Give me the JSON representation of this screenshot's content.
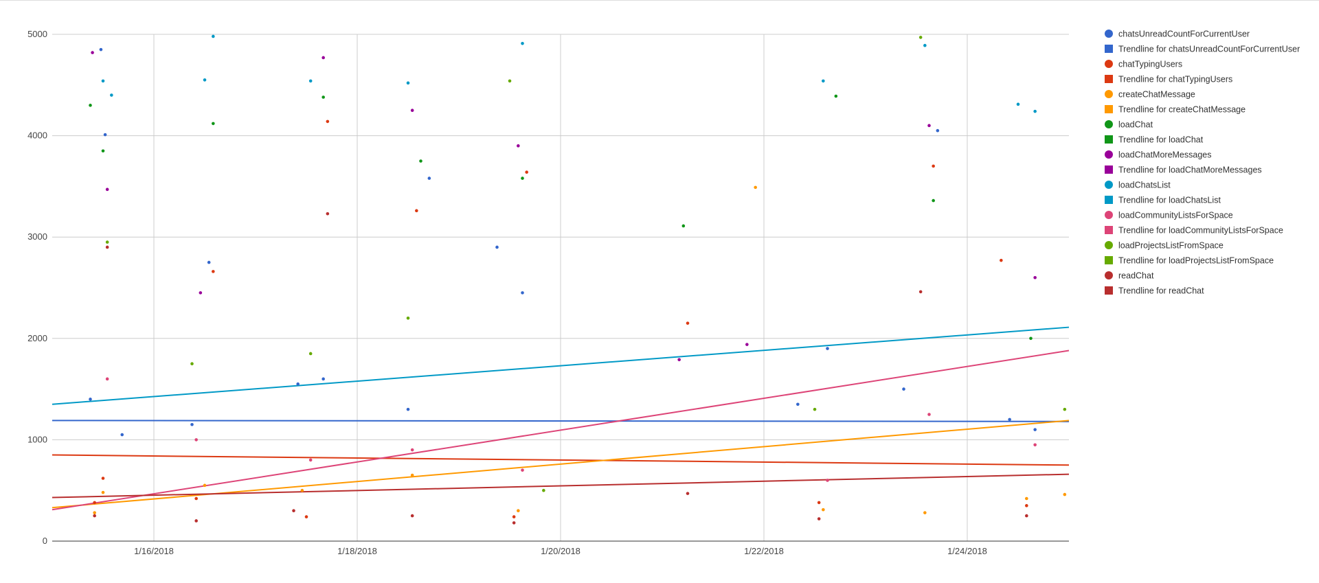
{
  "chart_data": {
    "type": "scatter",
    "title": "",
    "xlabel": "",
    "ylabel": "",
    "x_axis_type": "date",
    "xlim": [
      "2018-01-15T00:00",
      "2018-01-25T00:00"
    ],
    "ylim": [
      0,
      5000
    ],
    "grid": true,
    "legend_position": "right",
    "x_ticks": [
      {
        "x": "2018-01-16",
        "label": "1/16/2018"
      },
      {
        "x": "2018-01-18",
        "label": "1/18/2018"
      },
      {
        "x": "2018-01-20",
        "label": "1/20/2018"
      },
      {
        "x": "2018-01-22",
        "label": "1/22/2018"
      },
      {
        "x": "2018-01-24",
        "label": "1/24/2018"
      }
    ],
    "y_ticks": [
      {
        "y": 0,
        "label": "0"
      },
      {
        "y": 1000,
        "label": "1000"
      },
      {
        "y": 2000,
        "label": "2000"
      },
      {
        "y": 3000,
        "label": "3000"
      },
      {
        "y": 4000,
        "label": "4000"
      },
      {
        "y": 5000,
        "label": "5000"
      }
    ],
    "series": [
      {
        "name": "chatsUnreadCountForCurrentUser",
        "color": "#3366cc",
        "points": [
          [
            "2018-01-15T09:00",
            1400
          ],
          [
            "2018-01-15T11:30",
            4850
          ],
          [
            "2018-01-15T12:30",
            4010
          ],
          [
            "2018-01-15T16:30",
            1050
          ],
          [
            "2018-01-16T09:00",
            1150
          ],
          [
            "2018-01-16T13:00",
            2750
          ],
          [
            "2018-01-17T10:00",
            1550
          ],
          [
            "2018-01-17T16:00",
            1600
          ],
          [
            "2018-01-18T12:00",
            1300
          ],
          [
            "2018-01-18T17:00",
            3580
          ],
          [
            "2018-01-19T09:00",
            2900
          ],
          [
            "2018-01-19T15:00",
            2450
          ],
          [
            "2018-01-22T08:00",
            1350
          ],
          [
            "2018-01-22T15:00",
            1900
          ],
          [
            "2018-01-23T09:00",
            1500
          ],
          [
            "2018-01-23T17:00",
            4050
          ],
          [
            "2018-01-24T10:00",
            1200
          ],
          [
            "2018-01-24T16:00",
            1100
          ]
        ]
      },
      {
        "name": "chatTypingUsers",
        "color": "#dc3912",
        "points": [
          [
            "2018-01-15T10:00",
            380
          ],
          [
            "2018-01-15T12:00",
            620
          ],
          [
            "2018-01-16T10:00",
            420
          ],
          [
            "2018-01-16T14:00",
            2660
          ],
          [
            "2018-01-17T12:00",
            240
          ],
          [
            "2018-01-17T17:00",
            4140
          ],
          [
            "2018-01-18T14:00",
            3260
          ],
          [
            "2018-01-19T13:00",
            240
          ],
          [
            "2018-01-19T16:00",
            3640
          ],
          [
            "2018-01-21T06:00",
            2150
          ],
          [
            "2018-01-22T13:00",
            380
          ],
          [
            "2018-01-23T16:00",
            3700
          ],
          [
            "2018-01-24T08:00",
            2770
          ],
          [
            "2018-01-24T14:00",
            350
          ]
        ]
      },
      {
        "name": "createChatMessage",
        "color": "#ff9900",
        "points": [
          [
            "2018-01-15T10:00",
            280
          ],
          [
            "2018-01-15T12:00",
            480
          ],
          [
            "2018-01-16T12:00",
            550
          ],
          [
            "2018-01-17T11:00",
            500
          ],
          [
            "2018-01-18T13:00",
            650
          ],
          [
            "2018-01-19T14:00",
            300
          ],
          [
            "2018-01-21T22:00",
            3490
          ],
          [
            "2018-01-22T14:00",
            310
          ],
          [
            "2018-01-23T14:00",
            280
          ],
          [
            "2018-01-24T14:00",
            420
          ],
          [
            "2018-01-24T23:00",
            460
          ]
        ]
      },
      {
        "name": "loadChat",
        "color": "#109618",
        "points": [
          [
            "2018-01-15T09:00",
            4300
          ],
          [
            "2018-01-15T12:00",
            3850
          ],
          [
            "2018-01-16T14:00",
            4120
          ],
          [
            "2018-01-17T16:00",
            4380
          ],
          [
            "2018-01-18T15:00",
            3750
          ],
          [
            "2018-01-19T15:00",
            3580
          ],
          [
            "2018-01-21T05:00",
            3110
          ],
          [
            "2018-01-22T17:00",
            4390
          ],
          [
            "2018-01-23T16:00",
            3360
          ],
          [
            "2018-01-24T15:00",
            2000
          ]
        ]
      },
      {
        "name": "loadChatMoreMessages",
        "color": "#990099",
        "points": [
          [
            "2018-01-15T09:30",
            4820
          ],
          [
            "2018-01-15T13:00",
            3470
          ],
          [
            "2018-01-16T11:00",
            2450
          ],
          [
            "2018-01-17T16:00",
            4770
          ],
          [
            "2018-01-18T13:00",
            4250
          ],
          [
            "2018-01-19T14:00",
            3900
          ],
          [
            "2018-01-21T04:00",
            1790
          ],
          [
            "2018-01-21T20:00",
            1940
          ],
          [
            "2018-01-23T15:00",
            4100
          ],
          [
            "2018-01-24T16:00",
            2600
          ]
        ]
      },
      {
        "name": "loadChatsList",
        "color": "#0099c6",
        "points": [
          [
            "2018-01-15T12:00",
            4540
          ],
          [
            "2018-01-15T14:00",
            4400
          ],
          [
            "2018-01-16T12:00",
            4550
          ],
          [
            "2018-01-16T14:00",
            4980
          ],
          [
            "2018-01-17T13:00",
            4540
          ],
          [
            "2018-01-18T12:00",
            4520
          ],
          [
            "2018-01-19T15:00",
            4910
          ],
          [
            "2018-01-22T14:00",
            4540
          ],
          [
            "2018-01-23T14:00",
            4890
          ],
          [
            "2018-01-24T12:00",
            4310
          ],
          [
            "2018-01-24T16:00",
            4240
          ]
        ]
      },
      {
        "name": "loadCommunityListsForSpace",
        "color": "#dd4477",
        "points": [
          [
            "2018-01-15T13:00",
            1600
          ],
          [
            "2018-01-16T10:00",
            1000
          ],
          [
            "2018-01-17T13:00",
            800
          ],
          [
            "2018-01-18T13:00",
            900
          ],
          [
            "2018-01-19T15:00",
            700
          ],
          [
            "2018-01-22T15:00",
            600
          ],
          [
            "2018-01-23T15:00",
            1250
          ],
          [
            "2018-01-24T16:00",
            950
          ]
        ]
      },
      {
        "name": "loadProjectsListFromSpace",
        "color": "#66aa00",
        "points": [
          [
            "2018-01-15T13:00",
            2950
          ],
          [
            "2018-01-16T09:00",
            1750
          ],
          [
            "2018-01-17T13:00",
            1850
          ],
          [
            "2018-01-18T12:00",
            2200
          ],
          [
            "2018-01-19T12:00",
            4540
          ],
          [
            "2018-01-19T20:00",
            500
          ],
          [
            "2018-01-22T12:00",
            1300
          ],
          [
            "2018-01-23T13:00",
            4970
          ],
          [
            "2018-01-24T23:00",
            1300
          ]
        ]
      },
      {
        "name": "readChat",
        "color": "#b82e2e",
        "points": [
          [
            "2018-01-15T10:00",
            250
          ],
          [
            "2018-01-15T13:00",
            2900
          ],
          [
            "2018-01-16T10:00",
            200
          ],
          [
            "2018-01-17T09:00",
            300
          ],
          [
            "2018-01-17T17:00",
            3230
          ],
          [
            "2018-01-18T13:00",
            250
          ],
          [
            "2018-01-19T13:00",
            180
          ],
          [
            "2018-01-21T06:00",
            470
          ],
          [
            "2018-01-22T13:00",
            220
          ],
          [
            "2018-01-23T13:00",
            2460
          ],
          [
            "2018-01-24T14:00",
            250
          ]
        ]
      }
    ],
    "trendlines": [
      {
        "name": "Trendline for chatsUnreadCountForCurrentUser",
        "color": "#3366cc",
        "start": [
          "2018-01-15T00:00",
          1190
        ],
        "end": [
          "2018-01-25T00:00",
          1180
        ]
      },
      {
        "name": "Trendline for chatTypingUsers",
        "color": "#dc3912",
        "start": [
          "2018-01-15T00:00",
          850
        ],
        "end": [
          "2018-01-25T00:00",
          750
        ]
      },
      {
        "name": "Trendline for createChatMessage",
        "color": "#ff9900",
        "start": [
          "2018-01-15T00:00",
          330
        ],
        "end": [
          "2018-01-25T00:00",
          1190
        ]
      },
      {
        "name": "Trendline for loadChatsList",
        "color": "#0099c6",
        "start": [
          "2018-01-15T00:00",
          1350
        ],
        "end": [
          "2018-01-25T00:00",
          2110
        ]
      },
      {
        "name": "Trendline for loadCommunityListsForSpace",
        "color": "#dd4477",
        "start": [
          "2018-01-15T00:00",
          310
        ],
        "end": [
          "2018-01-25T00:00",
          1880
        ]
      },
      {
        "name": "Trendline for readChat",
        "color": "#b82e2e",
        "start": [
          "2018-01-15T00:00",
          430
        ],
        "end": [
          "2018-01-25T00:00",
          660
        ]
      }
    ],
    "legend": [
      {
        "label": "chatsUnreadCountForCurrentUser",
        "marker": "circle",
        "color": "#3366cc"
      },
      {
        "label": "Trendline for chatsUnreadCountForCurrentUser",
        "marker": "square",
        "color": "#3366cc"
      },
      {
        "label": "chatTypingUsers",
        "marker": "circle",
        "color": "#dc3912"
      },
      {
        "label": "Trendline for chatTypingUsers",
        "marker": "square",
        "color": "#dc3912"
      },
      {
        "label": "createChatMessage",
        "marker": "circle",
        "color": "#ff9900"
      },
      {
        "label": "Trendline for createChatMessage",
        "marker": "square",
        "color": "#ff9900"
      },
      {
        "label": "loadChat",
        "marker": "circle",
        "color": "#109618"
      },
      {
        "label": "Trendline for loadChat",
        "marker": "square",
        "color": "#109618"
      },
      {
        "label": "loadChatMoreMessages",
        "marker": "circle",
        "color": "#990099"
      },
      {
        "label": "Trendline for loadChatMoreMessages",
        "marker": "square",
        "color": "#990099"
      },
      {
        "label": "loadChatsList",
        "marker": "circle",
        "color": "#0099c6"
      },
      {
        "label": "Trendline for loadChatsList",
        "marker": "square",
        "color": "#0099c6"
      },
      {
        "label": "loadCommunityListsForSpace",
        "marker": "circle",
        "color": "#dd4477"
      },
      {
        "label": "Trendline for loadCommunityListsForSpace",
        "marker": "square",
        "color": "#dd4477"
      },
      {
        "label": "loadProjectsListFromSpace",
        "marker": "circle",
        "color": "#66aa00"
      },
      {
        "label": "Trendline for loadProjectsListFromSpace",
        "marker": "square",
        "color": "#66aa00"
      },
      {
        "label": "readChat",
        "marker": "circle",
        "color": "#b82e2e"
      },
      {
        "label": "Trendline for readChat",
        "marker": "square",
        "color": "#b82e2e"
      }
    ]
  }
}
